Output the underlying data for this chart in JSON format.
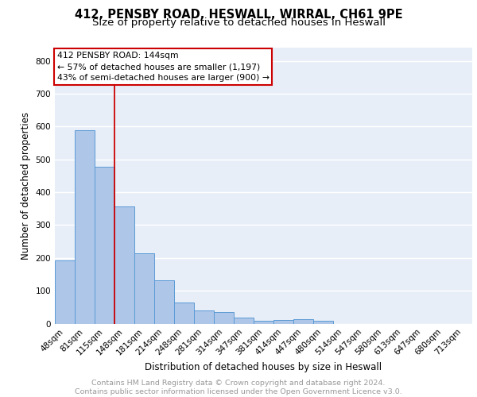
{
  "title_line1": "412, PENSBY ROAD, HESWALL, WIRRAL, CH61 9PE",
  "title_line2": "Size of property relative to detached houses in Heswall",
  "xlabel": "Distribution of detached houses by size in Heswall",
  "ylabel": "Number of detached properties",
  "footer_line1": "Contains HM Land Registry data © Crown copyright and database right 2024.",
  "footer_line2": "Contains public sector information licensed under the Open Government Licence v3.0.",
  "bar_labels": [
    "48sqm",
    "81sqm",
    "115sqm",
    "148sqm",
    "181sqm",
    "214sqm",
    "248sqm",
    "281sqm",
    "314sqm",
    "347sqm",
    "381sqm",
    "414sqm",
    "447sqm",
    "480sqm",
    "514sqm",
    "547sqm",
    "580sqm",
    "613sqm",
    "647sqm",
    "680sqm",
    "713sqm"
  ],
  "bar_values": [
    193,
    588,
    478,
    356,
    215,
    131,
    63,
    40,
    35,
    18,
    8,
    11,
    14,
    8,
    0,
    0,
    0,
    0,
    0,
    0,
    0
  ],
  "bar_color": "#aec6e8",
  "bar_edgecolor": "#5b9bd5",
  "annotation_line1": "412 PENSBY ROAD: 144sqm",
  "annotation_line2": "← 57% of detached houses are smaller (1,197)",
  "annotation_line3": "43% of semi-detached houses are larger (900) →",
  "vline_x": 2.5,
  "vline_color": "#cc0000",
  "box_color": "#cc0000",
  "ylim": [
    0,
    840
  ],
  "yticks": [
    0,
    100,
    200,
    300,
    400,
    500,
    600,
    700,
    800
  ],
  "background_color": "#e8eef8",
  "grid_color": "#ffffff",
  "title_fontsize": 10.5,
  "subtitle_fontsize": 9.5,
  "axis_label_fontsize": 8.5,
  "tick_fontsize": 7.5,
  "footer_fontsize": 6.8,
  "ann_fontsize": 7.8
}
